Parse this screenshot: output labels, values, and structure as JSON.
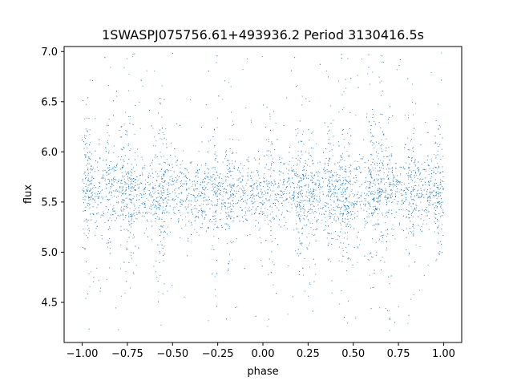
{
  "chart_data": {
    "type": "scatter",
    "title": "1SWASPJ075756.61+493936.2 Period 3130416.5s",
    "xlabel": "phase",
    "ylabel": "flux",
    "xlim": [
      -1.1,
      1.1
    ],
    "ylim": [
      4.1,
      7.05
    ],
    "x_ticks": [
      -1.0,
      -0.75,
      -0.5,
      -0.25,
      0.0,
      0.25,
      0.5,
      0.75,
      1.0
    ],
    "x_tick_labels": [
      "−1.00",
      "−0.75",
      "−0.50",
      "−0.25",
      "0.00",
      "0.25",
      "0.50",
      "0.75",
      "1.00"
    ],
    "y_ticks": [
      4.5,
      5.0,
      5.5,
      6.0,
      6.5,
      7.0
    ],
    "y_tick_labels": [
      "4.5",
      "5.0",
      "5.5",
      "6.0",
      "6.5",
      "7.0"
    ],
    "grid": false,
    "marker_color": "#1f77b4",
    "series": [
      {
        "description": "phase-folded light curve, mirrored about phase 0",
        "x_range": [
          -1.0,
          1.0
        ],
        "core_flux_range": [
          5.2,
          5.95
        ],
        "median_flux": 5.6,
        "outlier_flux_range": [
          4.22,
          7.0
        ],
        "high_scatter_phases": [
          -0.97,
          -0.85,
          -0.77,
          -0.73,
          -0.57,
          -0.55,
          -0.27,
          -0.18,
          0.04,
          0.2,
          0.23,
          0.27,
          0.37,
          0.44,
          0.47,
          0.6,
          0.65,
          0.7,
          0.82,
          0.97
        ]
      }
    ]
  }
}
